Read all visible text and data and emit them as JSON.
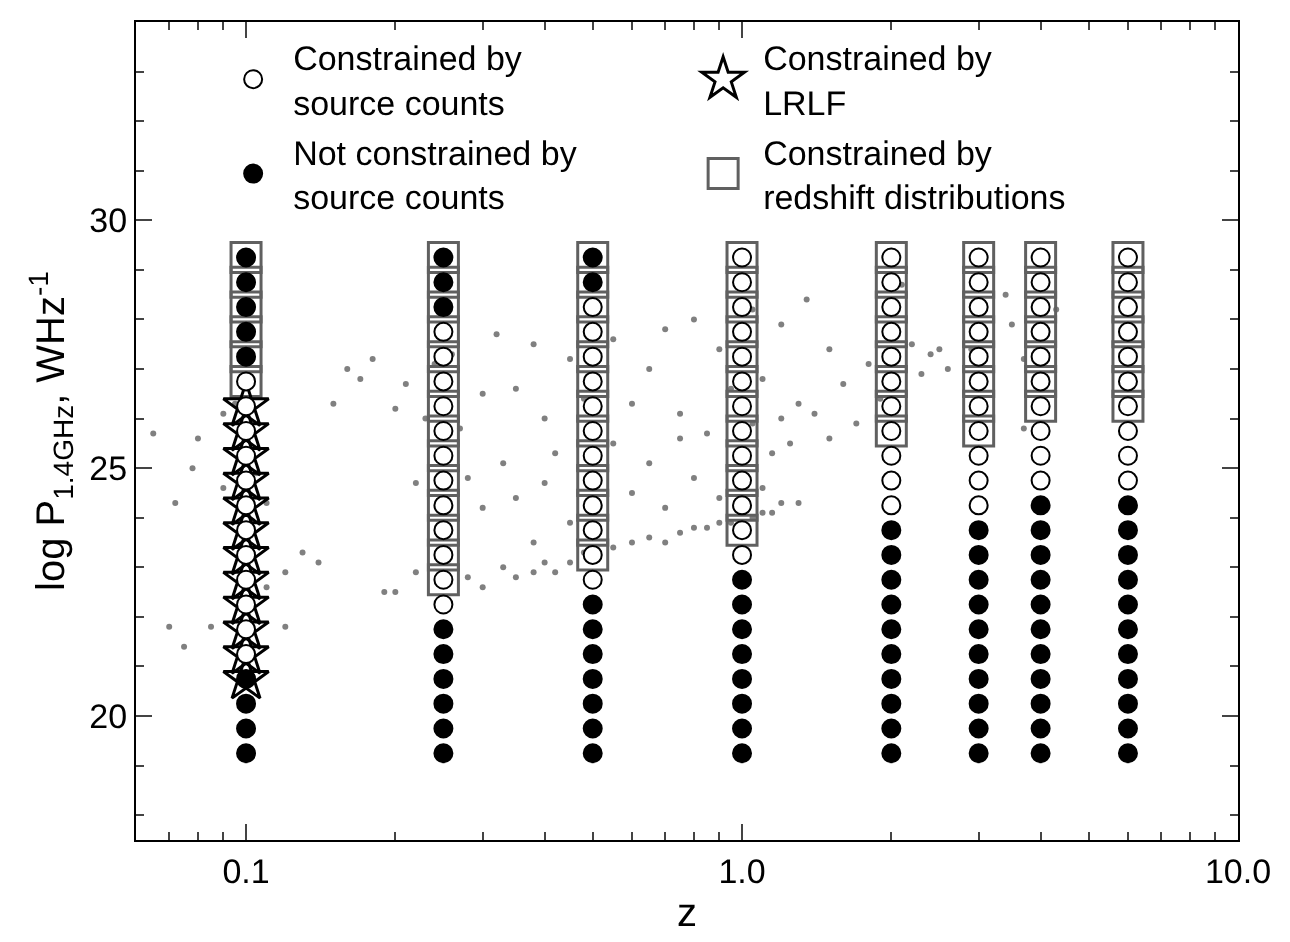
{
  "chart_data": {
    "type": "scatter",
    "xlabel": "z",
    "ylabel": "log P$_{1.4GHz}$, WHz$^{-1}$",
    "log": "x",
    "xlim": [
      0.06,
      10
    ],
    "xticks": [
      {
        "value": 0.1,
        "label": "0.1"
      },
      {
        "value": 1,
        "label": "1.0"
      },
      {
        "value": 10,
        "label": "10.0"
      }
    ],
    "ylim": [
      17.5,
      34
    ],
    "yticks": [
      20,
      25,
      30
    ],
    "grid": false,
    "legend": "top left",
    "series": [
      {
        "name": "Constrained by source counts",
        "marker": "circle",
        "color": "#ffffff",
        "x": [
          0.1,
          0.1,
          0.1,
          0.1,
          0.1,
          0.1,
          0.1,
          0.1,
          0.1,
          0.1,
          0.1,
          0.1,
          0.25,
          0.25,
          0.25,
          0.25,
          0.25,
          0.25,
          0.25,
          0.25,
          0.25,
          0.25,
          0.25,
          0.25,
          0.5,
          0.5,
          0.5,
          0.5,
          0.5,
          0.5,
          0.5,
          0.5,
          0.5,
          0.5,
          0.5,
          0.5,
          1,
          1,
          1,
          1,
          1,
          1,
          1,
          1,
          1,
          1,
          1,
          1,
          1,
          2,
          2,
          2,
          2,
          2,
          2,
          2,
          2,
          2,
          2,
          2,
          3,
          3,
          3,
          3,
          3,
          3,
          3,
          3,
          3,
          3,
          3,
          4,
          4,
          4,
          4,
          4,
          4,
          4,
          4,
          4,
          4,
          6,
          6,
          6,
          6,
          6,
          6,
          6,
          6,
          6,
          6
        ],
        "values": [
          26.75,
          26.25,
          25.75,
          25.25,
          24.75,
          24.25,
          23.75,
          23.25,
          22.75,
          22.25,
          21.75,
          21.25,
          27.75,
          27.25,
          26.75,
          26.25,
          25.75,
          25.25,
          24.75,
          24.25,
          23.75,
          23.25,
          22.75,
          22.25,
          28.25,
          27.75,
          27.25,
          26.75,
          26.25,
          25.75,
          25.25,
          24.75,
          24.25,
          23.75,
          23.25,
          22.75,
          29.25,
          28.75,
          28.25,
          27.75,
          27.25,
          26.75,
          26.25,
          25.75,
          25.25,
          24.75,
          24.25,
          23.75,
          23.25,
          29.25,
          28.75,
          28.25,
          27.75,
          27.25,
          26.75,
          26.25,
          25.75,
          25.25,
          24.75,
          24.25,
          29.25,
          28.75,
          28.25,
          27.75,
          27.25,
          26.75,
          26.25,
          25.75,
          25.25,
          24.75,
          24.25,
          29.25,
          28.75,
          28.25,
          27.75,
          27.25,
          26.75,
          26.25,
          25.75,
          25.25,
          24.75,
          29.25,
          28.75,
          28.25,
          27.75,
          27.25,
          26.75,
          26.25,
          25.75,
          25.25,
          24.75
        ]
      },
      {
        "name": "Constrained by LRLF",
        "marker": "star",
        "color": "#000000",
        "x": [
          0.1,
          0.1,
          0.1,
          0.1,
          0.1,
          0.1,
          0.1,
          0.1,
          0.1,
          0.1,
          0.1,
          0.1
        ],
        "values": [
          26.25,
          25.75,
          25.25,
          24.75,
          24.25,
          23.75,
          23.25,
          22.75,
          22.25,
          21.75,
          21.25,
          20.75
        ]
      },
      {
        "name": "Not constrained by source counts",
        "marker": "circle",
        "color": "#000000",
        "x": [
          0.1,
          0.1,
          0.1,
          0.1,
          0.1,
          0.1,
          0.1,
          0.1,
          0.1,
          0.25,
          0.25,
          0.25,
          0.25,
          0.25,
          0.25,
          0.25,
          0.25,
          0.25,
          0.5,
          0.5,
          0.5,
          0.5,
          0.5,
          0.5,
          0.5,
          0.5,
          0.5,
          1,
          1,
          1,
          1,
          1,
          1,
          1,
          1,
          2,
          2,
          2,
          2,
          2,
          2,
          2,
          2,
          2,
          2,
          3,
          3,
          3,
          3,
          3,
          3,
          3,
          3,
          3,
          3,
          4,
          4,
          4,
          4,
          4,
          4,
          4,
          4,
          4,
          4,
          4,
          6,
          6,
          6,
          6,
          6,
          6,
          6,
          6,
          6,
          6,
          6
        ],
        "values": [
          29.25,
          28.75,
          28.25,
          27.75,
          27.25,
          20.75,
          20.25,
          19.75,
          19.25,
          29.25,
          28.75,
          28.25,
          21.75,
          21.25,
          20.75,
          20.25,
          19.75,
          19.25,
          29.25,
          28.75,
          22.25,
          21.75,
          21.25,
          20.75,
          20.25,
          19.75,
          19.25,
          22.75,
          22.25,
          21.75,
          21.25,
          20.75,
          20.25,
          19.75,
          19.25,
          23.75,
          23.25,
          22.75,
          22.25,
          21.75,
          21.25,
          20.75,
          20.25,
          19.75,
          19.25,
          23.75,
          23.25,
          22.75,
          22.25,
          21.75,
          21.25,
          20.75,
          20.25,
          19.75,
          19.25,
          24.25,
          23.75,
          23.25,
          22.75,
          22.25,
          21.75,
          21.25,
          20.75,
          20.25,
          19.75,
          19.25,
          24.25,
          23.75,
          23.25,
          22.75,
          22.25,
          21.75,
          21.25,
          20.75,
          20.25,
          19.75,
          19.25
        ]
      },
      {
        "name": "Constrained by redshift distributions",
        "marker": "square",
        "color": "#606060",
        "x": [
          0.1,
          0.1,
          0.1,
          0.1,
          0.1,
          0.1,
          0.25,
          0.25,
          0.25,
          0.25,
          0.25,
          0.25,
          0.25,
          0.25,
          0.25,
          0.25,
          0.25,
          0.25,
          0.25,
          0.25,
          0.5,
          0.5,
          0.5,
          0.5,
          0.5,
          0.5,
          0.5,
          0.5,
          0.5,
          0.5,
          0.5,
          0.5,
          0.5,
          1,
          1,
          1,
          1,
          1,
          1,
          1,
          1,
          1,
          1,
          1,
          1,
          2,
          2,
          2,
          2,
          2,
          2,
          2,
          2,
          3,
          3,
          3,
          3,
          3,
          3,
          3,
          3,
          4,
          4,
          4,
          4,
          4,
          4,
          4,
          6,
          6,
          6,
          6,
          6,
          6,
          6
        ],
        "values": [
          29.25,
          28.75,
          28.25,
          27.75,
          27.25,
          26.75,
          29.25,
          28.75,
          28.25,
          27.75,
          27.25,
          26.75,
          26.25,
          25.75,
          25.25,
          24.75,
          24.25,
          23.75,
          23.25,
          22.75,
          29.25,
          28.75,
          28.25,
          27.75,
          27.25,
          26.75,
          26.25,
          25.75,
          25.25,
          24.75,
          24.25,
          23.75,
          23.25,
          29.25,
          28.75,
          28.25,
          27.75,
          27.25,
          26.75,
          26.25,
          25.75,
          25.25,
          24.75,
          24.25,
          23.75,
          29.25,
          28.75,
          28.25,
          27.75,
          27.25,
          26.75,
          26.25,
          25.75,
          29.25,
          28.75,
          28.25,
          27.75,
          27.25,
          26.75,
          26.25,
          25.75,
          29.25,
          28.75,
          28.25,
          27.75,
          27.25,
          26.75,
          26.25,
          29.25,
          28.75,
          28.25,
          27.75,
          27.25,
          26.75,
          26.25
        ]
      },
      {
        "marker": "circle",
        "color": "#808080",
        "x": [
          0.065,
          0.07,
          0.072,
          0.075,
          0.078,
          0.08,
          0.085,
          0.09,
          0.09,
          0.095,
          0.105,
          0.11,
          0.11,
          0.12,
          0.12,
          0.13,
          0.14,
          0.15,
          0.16,
          0.17,
          0.18,
          0.19,
          0.2,
          0.2,
          0.21,
          0.22,
          0.22,
          0.23,
          0.24,
          0.26,
          0.27,
          0.28,
          0.28,
          0.3,
          0.3,
          0.3,
          0.32,
          0.33,
          0.33,
          0.35,
          0.35,
          0.35,
          0.38,
          0.38,
          0.38,
          0.4,
          0.4,
          0.4,
          0.42,
          0.42,
          0.45,
          0.45,
          0.45,
          0.48,
          0.48,
          0.55,
          0.55,
          0.55,
          0.6,
          0.6,
          0.6,
          0.65,
          0.65,
          0.65,
          0.7,
          0.7,
          0.7,
          0.75,
          0.75,
          0.75,
          0.8,
          0.8,
          0.8,
          0.85,
          0.85,
          0.9,
          0.9,
          0.9,
          0.95,
          0.95,
          1.05,
          1.05,
          1.05,
          1.1,
          1.1,
          1.1,
          1.15,
          1.15,
          1.2,
          1.2,
          1.2,
          1.25,
          1.3,
          1.3,
          1.35,
          1.4,
          1.5,
          1.5,
          1.6,
          1.7,
          1.8,
          1.9,
          2.1,
          2.2,
          2.3,
          2.4,
          2.5,
          2.6,
          2.9,
          3.4,
          3.5,
          3.7,
          3.7,
          4.3
        ],
        "values": [
          25.7,
          21.8,
          24.3,
          21.4,
          25.0,
          25.6,
          21.8,
          26.1,
          24.6,
          26.3,
          24.9,
          22.6,
          24.3,
          22.9,
          21.8,
          23.3,
          23.1,
          26.3,
          27.0,
          26.8,
          27.2,
          22.5,
          26.2,
          22.5,
          26.7,
          24.7,
          22.9,
          26.0,
          27.1,
          27.3,
          25.8,
          24.8,
          22.8,
          26.5,
          24.2,
          22.6,
          27.7,
          25.1,
          23.0,
          26.6,
          24.4,
          22.8,
          27.5,
          23.5,
          22.9,
          26.0,
          24.7,
          23.1,
          25.3,
          22.9,
          27.2,
          23.9,
          23.1,
          26.4,
          23.3,
          27.6,
          25.5,
          23.4,
          26.3,
          24.5,
          23.5,
          27.0,
          25.1,
          23.6,
          27.8,
          24.2,
          23.5,
          26.1,
          25.6,
          23.7,
          28.0,
          24.8,
          23.8,
          25.7,
          23.8,
          27.4,
          24.4,
          23.9,
          26.6,
          23.9,
          28.2,
          25.9,
          24.0,
          26.8,
          24.6,
          24.1,
          25.3,
          24.1,
          27.9,
          26.0,
          24.3,
          25.5,
          26.3,
          24.3,
          28.4,
          26.1,
          27.4,
          25.6,
          26.7,
          25.9,
          27.1,
          26.4,
          28.7,
          27.5,
          26.9,
          27.3,
          27.4,
          27.0,
          27.4,
          28.5,
          27.9,
          27.2,
          25.8,
          28.2
        ]
      }
    ]
  }
}
